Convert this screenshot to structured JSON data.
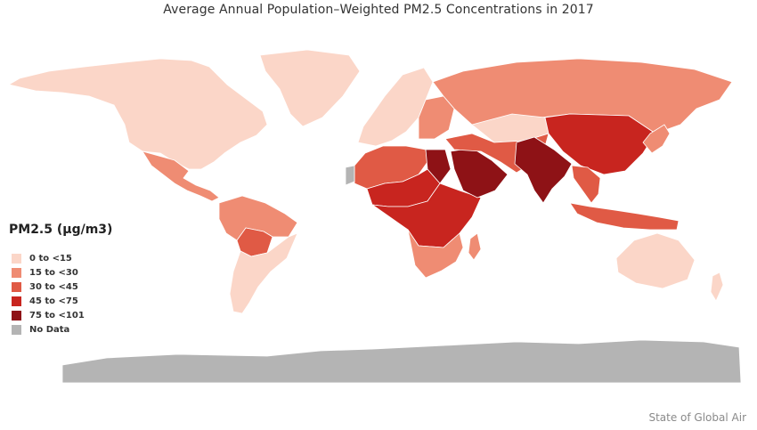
{
  "title": "Average Annual Population–Weighted PM2.5 Concentrations in 2017",
  "legend": {
    "title": "PM2.5 (µg/m3)",
    "items": [
      {
        "label": "0 to <15",
        "color": "#fbd6c8"
      },
      {
        "label": "15 to <30",
        "color": "#ef8c73"
      },
      {
        "label": "30 to <45",
        "color": "#e05a45"
      },
      {
        "label": "45 to <75",
        "color": "#c8251f"
      },
      {
        "label": "75 to <101",
        "color": "#8e1216"
      },
      {
        "label": "No Data",
        "color": "#b4b4b4"
      }
    ]
  },
  "credit": "State of Global Air",
  "map_regions": [
    {
      "name": "north-america",
      "class": "0 to <15"
    },
    {
      "name": "greenland",
      "class": "0 to <15"
    },
    {
      "name": "mexico-central-america",
      "class": "15 to <30"
    },
    {
      "name": "south-america-north",
      "class": "15 to <30"
    },
    {
      "name": "bolivia",
      "class": "30 to <45"
    },
    {
      "name": "south-america-south",
      "class": "0 to <15"
    },
    {
      "name": "europe-west",
      "class": "0 to <15"
    },
    {
      "name": "europe-east",
      "class": "15 to <30"
    },
    {
      "name": "russia",
      "class": "15 to <30"
    },
    {
      "name": "kazakhstan",
      "class": "0 to <15"
    },
    {
      "name": "north-africa",
      "class": "30 to <45"
    },
    {
      "name": "sahel",
      "class": "45 to <75"
    },
    {
      "name": "egypt",
      "class": "75 to <101"
    },
    {
      "name": "arabian-peninsula",
      "class": "75 to <101"
    },
    {
      "name": "iran-central-asia",
      "class": "30 to <45"
    },
    {
      "name": "central-africa",
      "class": "45 to <75"
    },
    {
      "name": "southern-africa",
      "class": "15 to <30"
    },
    {
      "name": "india-pakistan",
      "class": "75 to <101"
    },
    {
      "name": "china",
      "class": "45 to <75"
    },
    {
      "name": "southeast-asia",
      "class": "30 to <45"
    },
    {
      "name": "japan-korea",
      "class": "15 to <30"
    },
    {
      "name": "indonesia-png",
      "class": "30 to <45"
    },
    {
      "name": "australia",
      "class": "0 to <15"
    },
    {
      "name": "new-zealand",
      "class": "0 to <15"
    },
    {
      "name": "western-sahara",
      "class": "No Data"
    },
    {
      "name": "antarctica",
      "class": "No Data"
    }
  ]
}
